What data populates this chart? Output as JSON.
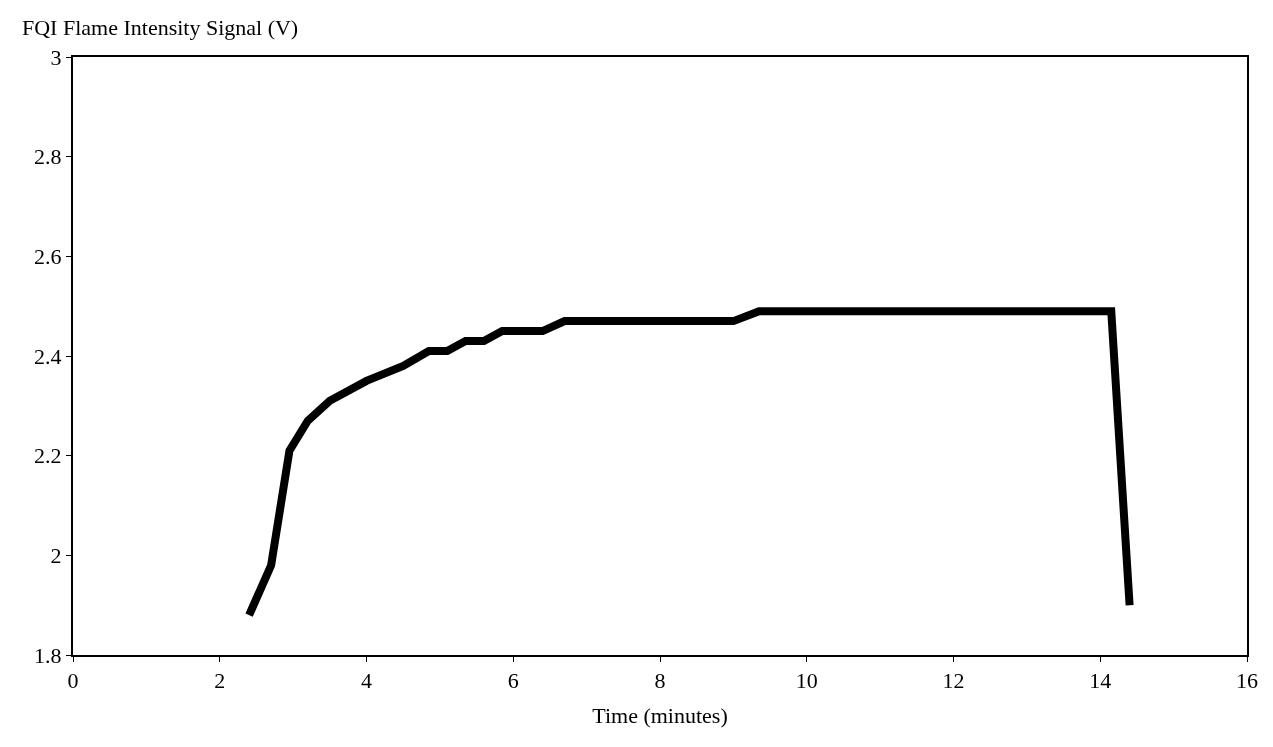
{
  "chart_data": {
    "type": "line",
    "ylabel": "FQI Flame Intensity Signal (V)",
    "xlabel": "Time (minutes)",
    "series": [
      {
        "color": "#000000",
        "x": [
          2.4,
          2.7,
          2.95,
          3.2,
          3.5,
          4.0,
          4.5,
          4.85,
          5.1,
          5.35,
          5.6,
          5.85,
          6.4,
          6.7,
          9.0,
          9.35,
          14.15,
          14.4
        ],
        "values": [
          1.88,
          1.98,
          2.21,
          2.27,
          2.31,
          2.35,
          2.38,
          2.41,
          2.41,
          2.43,
          2.43,
          2.45,
          2.45,
          2.47,
          2.47,
          2.49,
          2.49,
          1.9
        ]
      }
    ],
    "xlim": [
      0,
      16
    ],
    "xticks": [
      0,
      2,
      4,
      6,
      8,
      10,
      12,
      14,
      16
    ],
    "ylim": [
      1.8,
      3
    ],
    "yticks": [
      1.8,
      2,
      2.2,
      2.4,
      2.6,
      2.8,
      3
    ],
    "marker": "none",
    "line_style": "solid"
  }
}
